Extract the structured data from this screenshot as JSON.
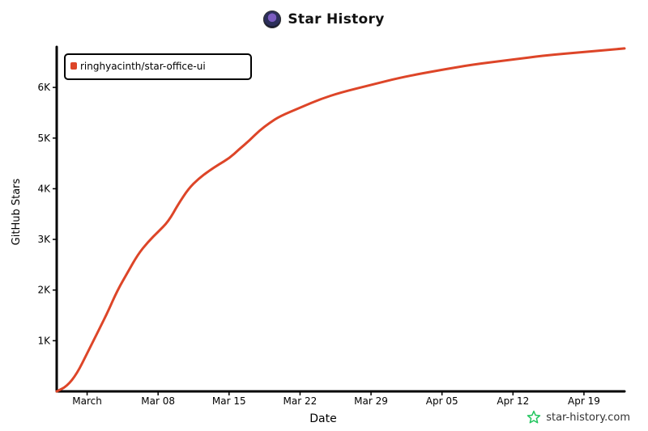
{
  "header": {
    "title": "Star History"
  },
  "watermark": {
    "text": "star-history.com"
  },
  "colors": {
    "line": "#dd4528",
    "axis": "#000000",
    "accent": "#22c55e"
  },
  "chart_data": {
    "type": "line",
    "title": "Star History",
    "xlabel": "Date",
    "ylabel": "GitHub Stars",
    "x_ticks": [
      "March",
      "Mar 08",
      "Mar 15",
      "Mar 22",
      "Mar 29",
      "Apr 05",
      "Apr 12",
      "Apr 19"
    ],
    "y_ticks": [
      "1K",
      "2K",
      "3K",
      "4K",
      "5K",
      "6K"
    ],
    "ylim": [
      0,
      6800
    ],
    "xlim": [
      "2026-02-26",
      "2026-04-23"
    ],
    "legend": "top-left",
    "grid": false,
    "series": [
      {
        "name": "ringhyacinth/star-office-ui",
        "color": "#dd4528",
        "points": [
          {
            "x": "2026-02-26",
            "y": 0
          },
          {
            "x": "2026-02-27",
            "y": 100
          },
          {
            "x": "2026-02-28",
            "y": 350
          },
          {
            "x": "2026-03-01",
            "y": 750
          },
          {
            "x": "2026-03-02",
            "y": 1150
          },
          {
            "x": "2026-03-03",
            "y": 1550
          },
          {
            "x": "2026-03-04",
            "y": 2000
          },
          {
            "x": "2026-03-05",
            "y": 2350
          },
          {
            "x": "2026-03-06",
            "y": 2700
          },
          {
            "x": "2026-03-07",
            "y": 2950
          },
          {
            "x": "2026-03-08",
            "y": 3150
          },
          {
            "x": "2026-03-09",
            "y": 3350
          },
          {
            "x": "2026-03-10",
            "y": 3700
          },
          {
            "x": "2026-03-11",
            "y": 4000
          },
          {
            "x": "2026-03-12",
            "y": 4200
          },
          {
            "x": "2026-03-13",
            "y": 4350
          },
          {
            "x": "2026-03-14",
            "y": 4480
          },
          {
            "x": "2026-03-15",
            "y": 4600
          },
          {
            "x": "2026-03-16",
            "y": 4780
          },
          {
            "x": "2026-03-17",
            "y": 4950
          },
          {
            "x": "2026-03-18",
            "y": 5150
          },
          {
            "x": "2026-03-19",
            "y": 5300
          },
          {
            "x": "2026-03-20",
            "y": 5430
          },
          {
            "x": "2026-03-22",
            "y": 5600
          },
          {
            "x": "2026-03-24",
            "y": 5770
          },
          {
            "x": "2026-03-26",
            "y": 5900
          },
          {
            "x": "2026-03-29",
            "y": 6050
          },
          {
            "x": "2026-04-01",
            "y": 6200
          },
          {
            "x": "2026-04-05",
            "y": 6350
          },
          {
            "x": "2026-04-08",
            "y": 6450
          },
          {
            "x": "2026-04-12",
            "y": 6550
          },
          {
            "x": "2026-04-15",
            "y": 6630
          },
          {
            "x": "2026-04-19",
            "y": 6700
          },
          {
            "x": "2026-04-23",
            "y": 6770
          }
        ]
      }
    ]
  }
}
